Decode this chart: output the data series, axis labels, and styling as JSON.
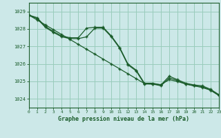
{
  "title": "Graphe pression niveau de la mer (hPa)",
  "bg_color": "#cce8e8",
  "grid_color": "#99ccbb",
  "line_color": "#1a5c2a",
  "xlim": [
    0,
    23
  ],
  "ylim": [
    1023.5,
    1029.5
  ],
  "yticks": [
    1024,
    1025,
    1026,
    1027,
    1028,
    1029
  ],
  "xticks": [
    0,
    1,
    2,
    3,
    4,
    5,
    6,
    7,
    8,
    9,
    10,
    11,
    12,
    13,
    14,
    15,
    16,
    17,
    18,
    19,
    20,
    21,
    22,
    23
  ],
  "hours": [
    0,
    1,
    2,
    3,
    4,
    5,
    6,
    7,
    8,
    9,
    10,
    11,
    12,
    13,
    14,
    15,
    16,
    17,
    18,
    19,
    20,
    21,
    22,
    23
  ],
  "line_main": [
    1028.8,
    1028.6,
    1028.1,
    1027.8,
    1027.55,
    1027.45,
    1027.45,
    1027.55,
    1028.05,
    1028.05,
    1027.55,
    1026.9,
    1025.95,
    1025.6,
    1024.85,
    1024.85,
    1024.75,
    1025.2,
    1025.05,
    1024.85,
    1024.75,
    1024.7,
    1024.5,
    1024.2
  ],
  "line_high": [
    1028.8,
    1028.65,
    1028.15,
    1027.85,
    1027.6,
    1027.5,
    1027.5,
    1028.05,
    1028.1,
    1028.1,
    1027.6,
    1026.95,
    1026.0,
    1025.65,
    1024.9,
    1024.9,
    1024.8,
    1025.3,
    1025.1,
    1024.9,
    1024.8,
    1024.75,
    1024.55,
    1024.25
  ],
  "line_trend": [
    1028.8,
    1028.52,
    1028.24,
    1027.96,
    1027.68,
    1027.4,
    1027.12,
    1026.84,
    1026.56,
    1026.28,
    1026.0,
    1025.72,
    1025.44,
    1025.16,
    1024.88,
    1024.85,
    1024.82,
    1025.1,
    1025.0,
    1024.85,
    1024.75,
    1024.65,
    1024.5,
    1024.2
  ]
}
